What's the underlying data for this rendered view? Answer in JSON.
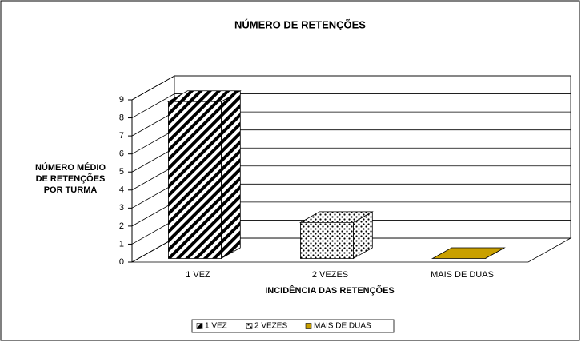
{
  "chart_data": {
    "type": "bar3d",
    "title": "NÚMERO DE RETENÇÕES",
    "x_label": "INCIDÊNCIA DAS RETENÇÕES",
    "y_label": [
      "NÚMERO MÉDIO",
      "DE RETENÇÕES",
      "POR TURMA"
    ],
    "categories": [
      "1 VEZ",
      "2 VEZES",
      "MAIS DE DUAS"
    ],
    "values": [
      8.7,
      2,
      0
    ],
    "colors": [
      "#000000",
      "#000000",
      "#c9a000"
    ],
    "ylim": [
      0,
      9
    ],
    "yticks": [
      0,
      1,
      2,
      3,
      4,
      5,
      6,
      7,
      8,
      9
    ],
    "grid": true,
    "legend": "bottom"
  }
}
